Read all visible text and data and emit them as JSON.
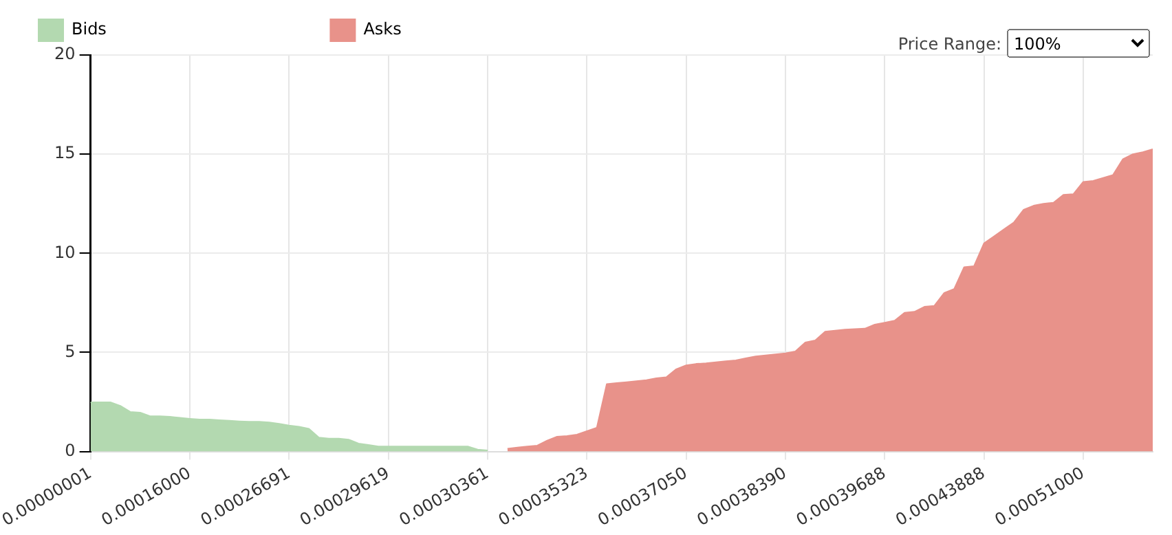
{
  "chart_data": {
    "type": "area",
    "categories": [
      "0.00000001",
      null,
      null,
      null,
      null,
      null,
      null,
      null,
      null,
      null,
      "0.00016000",
      null,
      null,
      null,
      null,
      null,
      null,
      null,
      null,
      null,
      "0.00026691",
      null,
      null,
      null,
      null,
      null,
      null,
      null,
      null,
      null,
      "0.00029619",
      null,
      null,
      null,
      null,
      null,
      null,
      null,
      null,
      null,
      "0.00030361",
      null,
      null,
      null,
      null,
      null,
      null,
      null,
      null,
      null,
      "0.00035323",
      null,
      null,
      null,
      null,
      null,
      null,
      null,
      null,
      null,
      "0.00037050",
      null,
      null,
      null,
      null,
      null,
      null,
      null,
      null,
      null,
      "0.00038390",
      null,
      null,
      null,
      null,
      null,
      null,
      null,
      null,
      null,
      "0.00039688",
      null,
      null,
      null,
      null,
      null,
      null,
      null,
      null,
      null,
      "0.00043888",
      null,
      null,
      null,
      null,
      null,
      null,
      null,
      null,
      null,
      "0.00051000",
      null,
      null,
      null,
      null,
      null,
      null,
      null
    ],
    "series": [
      {
        "name": "Bids",
        "color": "#b3d9b0",
        "values": [
          2.48,
          2.48,
          2.48,
          2.3,
          2.0,
          1.96,
          1.78,
          1.78,
          1.75,
          1.7,
          1.65,
          1.61,
          1.61,
          1.58,
          1.55,
          1.52,
          1.5,
          1.5,
          1.47,
          1.4,
          1.31,
          1.25,
          1.15,
          0.7,
          0.65,
          0.65,
          0.6,
          0.4,
          0.33,
          0.25,
          0.25,
          0.25,
          0.25,
          0.25,
          0.25,
          0.25,
          0.25,
          0.25,
          0.25,
          0.1,
          0.05,
          null,
          null,
          null,
          null,
          null,
          null,
          null,
          null,
          null,
          null,
          null,
          null,
          null,
          null,
          null,
          null,
          null,
          null,
          null,
          null,
          null,
          null,
          null,
          null,
          null,
          null,
          null,
          null,
          null,
          null,
          null,
          null,
          null,
          null,
          null,
          null,
          null,
          null,
          null,
          null,
          null,
          null,
          null,
          null,
          null,
          null,
          null,
          null,
          null,
          null,
          null,
          null,
          null,
          null,
          null,
          null,
          null,
          null,
          null,
          null,
          null,
          null,
          null,
          null,
          null,
          null,
          null
        ]
      },
      {
        "name": "Asks",
        "color": "#e8928a",
        "values": [
          null,
          null,
          null,
          null,
          null,
          null,
          null,
          null,
          null,
          null,
          null,
          null,
          null,
          null,
          null,
          null,
          null,
          null,
          null,
          null,
          null,
          null,
          null,
          null,
          null,
          null,
          null,
          null,
          null,
          null,
          null,
          null,
          null,
          null,
          null,
          null,
          null,
          null,
          null,
          null,
          null,
          null,
          0.14,
          0.2,
          0.25,
          0.3,
          0.55,
          0.75,
          0.78,
          0.85,
          1.03,
          1.2,
          3.4,
          3.45,
          3.5,
          3.55,
          3.6,
          3.7,
          3.75,
          4.15,
          4.35,
          4.42,
          4.45,
          4.5,
          4.55,
          4.6,
          4.7,
          4.8,
          4.85,
          4.9,
          4.95,
          5.05,
          5.5,
          5.6,
          6.05,
          6.1,
          6.15,
          6.18,
          6.2,
          6.4,
          6.5,
          6.6,
          7.0,
          7.05,
          7.3,
          7.35,
          8.0,
          8.2,
          9.3,
          9.35,
          10.5,
          10.85,
          11.2,
          11.55,
          12.2,
          12.4,
          12.5,
          12.55,
          12.95,
          12.98,
          13.6,
          13.65,
          13.8,
          13.95,
          14.75,
          15.0,
          15.1,
          15.25
        ]
      }
    ],
    "ylim": [
      0,
      20
    ],
    "yticks": [
      0,
      5,
      10,
      15,
      20
    ],
    "grid": true,
    "legend": "top left",
    "annotations": [
      "Price Range:",
      "100%"
    ]
  }
}
